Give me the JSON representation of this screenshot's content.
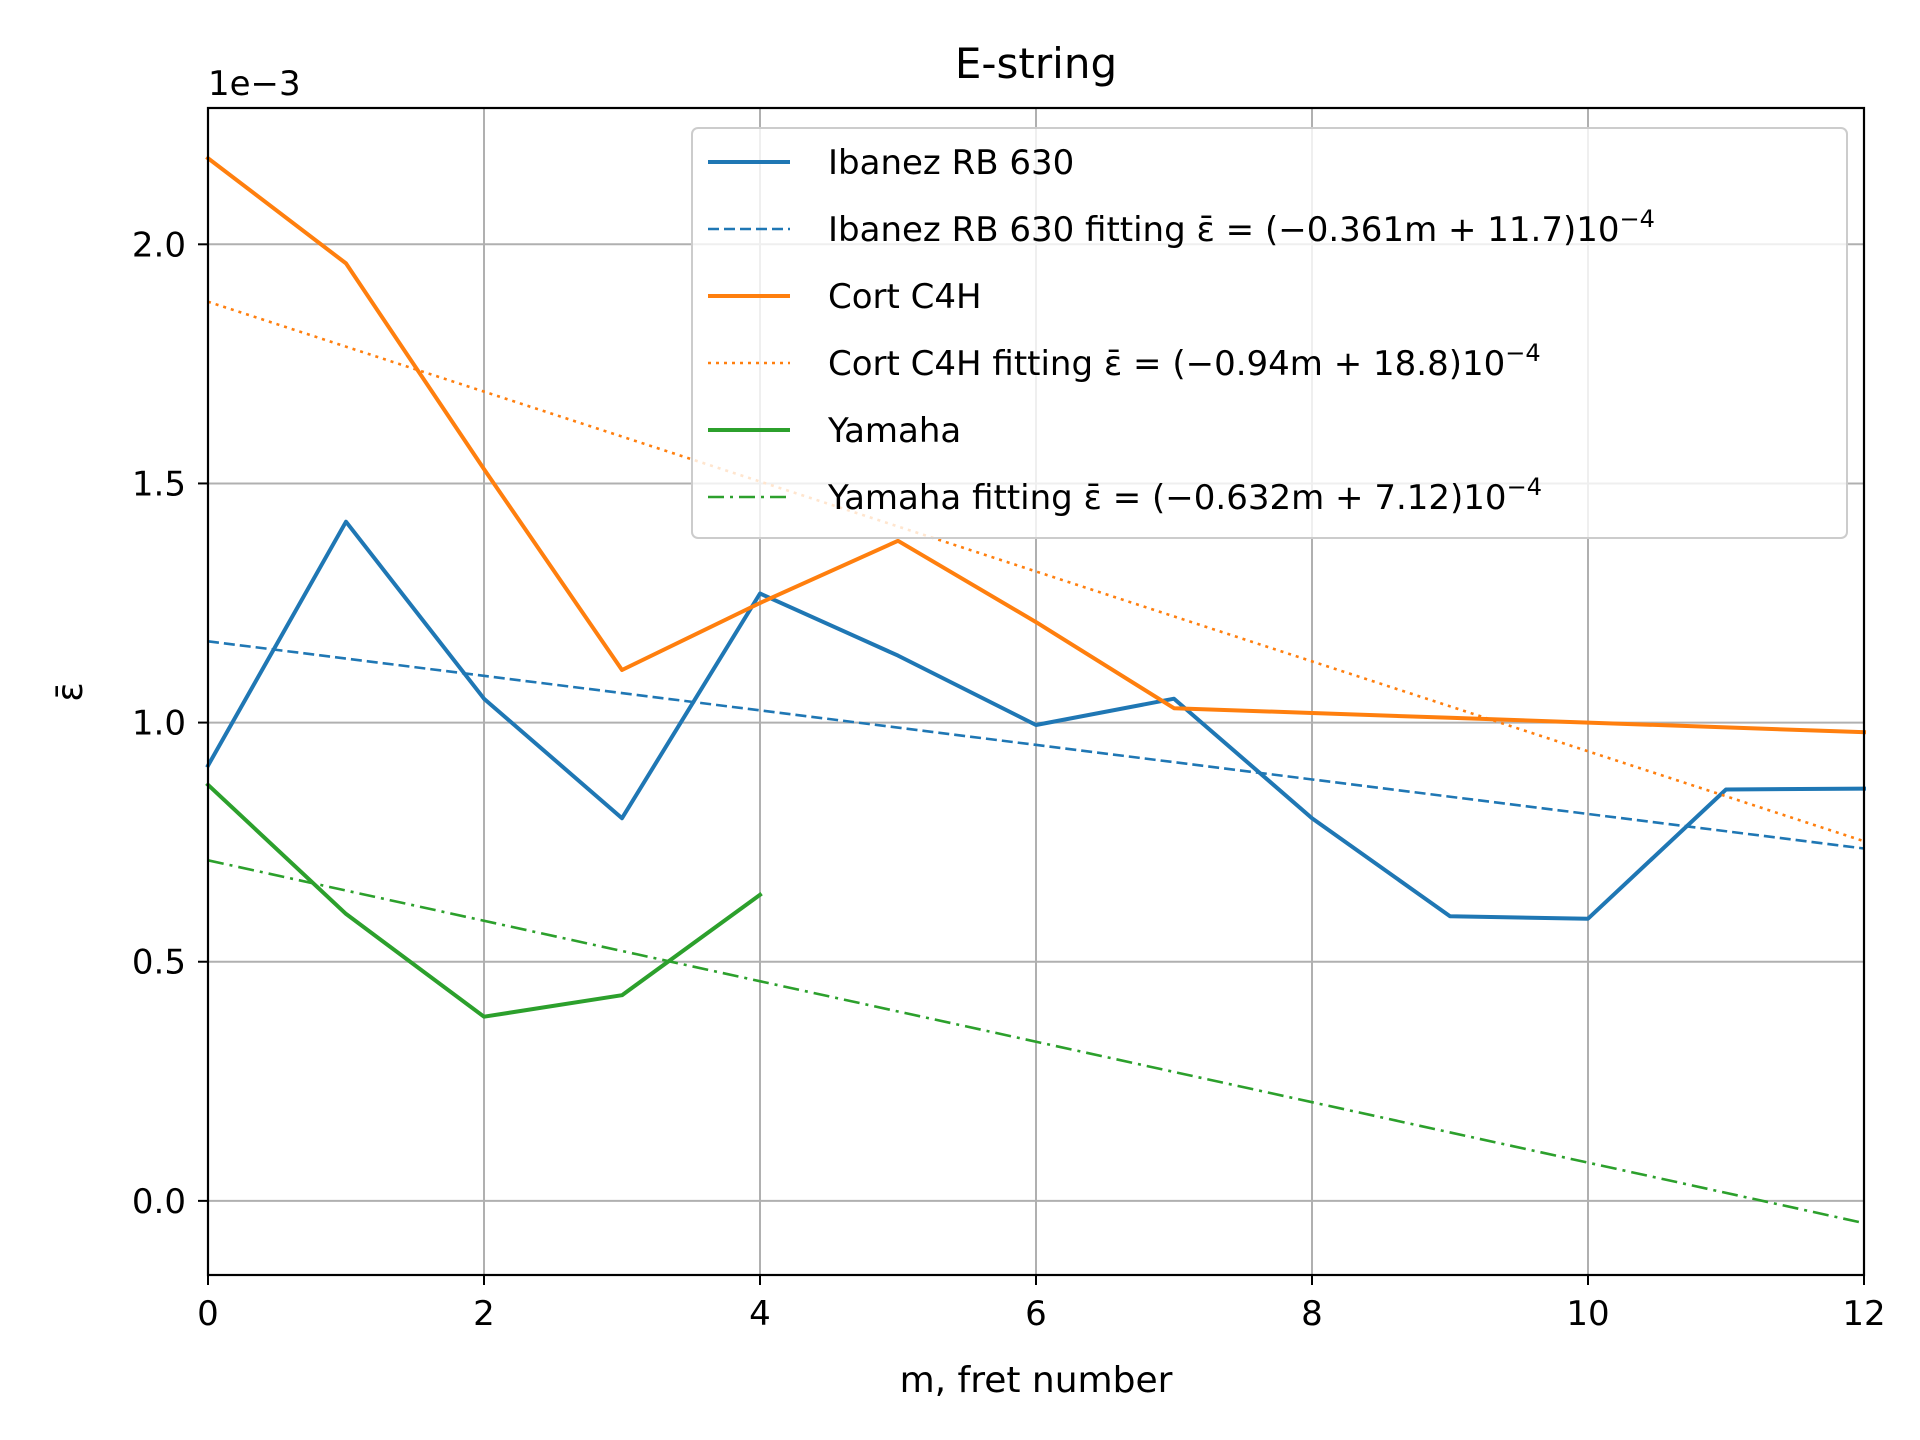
{
  "chart_data": {
    "type": "line",
    "title": "E-string",
    "xlabel": "m, fret number",
    "ylabel": "ε̄",
    "offset_label": "1e−3",
    "xlim": [
      0,
      12
    ],
    "ylim": [
      -0.155,
      2.285
    ],
    "x_ticks": [
      0,
      2,
      4,
      6,
      8,
      10,
      12
    ],
    "x_tick_labels": [
      "0",
      "2",
      "4",
      "6",
      "8",
      "10",
      "12"
    ],
    "y_ticks": [
      0.0,
      0.5,
      1.0,
      1.5,
      2.0
    ],
    "y_tick_labels": [
      "0.0",
      "0.5",
      "1.0",
      "1.5",
      "2.0"
    ],
    "grid": true,
    "legend_position": "top-right",
    "series": [
      {
        "name": "Ibanez RB 630",
        "style": "solid",
        "color": "#1f77b4",
        "x": [
          0,
          1,
          2,
          3,
          4,
          5,
          6,
          7,
          8,
          9,
          10,
          11,
          12
        ],
        "y": [
          0.91,
          1.42,
          1.05,
          0.8,
          1.27,
          1.14,
          0.995,
          1.05,
          0.8,
          0.595,
          0.59,
          0.86,
          0.862
        ]
      },
      {
        "name": "Ibanez RB 630 fitting",
        "formula": "ε̄ = (−0.361m + 11.7)10",
        "exponent": "−4",
        "style": "dashed",
        "color": "#1f77b4",
        "x": [
          0,
          12
        ],
        "y": [
          1.17,
          0.7368
        ]
      },
      {
        "name": "Cort C4H",
        "style": "solid",
        "color": "#ff7f0e",
        "x": [
          0,
          1,
          2,
          3,
          4,
          5,
          6,
          7,
          8,
          9,
          10,
          11,
          12
        ],
        "y": [
          2.18,
          1.96,
          1.53,
          1.11,
          1.25,
          1.38,
          1.21,
          1.03,
          1.02,
          1.01,
          1.0,
          0.99,
          0.98
        ]
      },
      {
        "name": "Cort C4H fitting",
        "formula": "ε̄ = (−0.94m + 18.8)10",
        "exponent": "−4",
        "style": "dotted",
        "color": "#ff7f0e",
        "x": [
          0,
          12
        ],
        "y": [
          1.88,
          0.752
        ]
      },
      {
        "name": "Yamaha",
        "style": "solid",
        "color": "#2ca02c",
        "x": [
          0,
          1,
          2,
          3,
          4
        ],
        "y": [
          0.87,
          0.6,
          0.385,
          0.43,
          0.64
        ]
      },
      {
        "name": "Yamaha fitting",
        "formula": "ε̄ = (−0.632m + 7.12)10",
        "exponent": "−4",
        "style": "dashdot",
        "color": "#2ca02c",
        "x": [
          0,
          12
        ],
        "y": [
          0.712,
          -0.0464
        ]
      }
    ]
  }
}
